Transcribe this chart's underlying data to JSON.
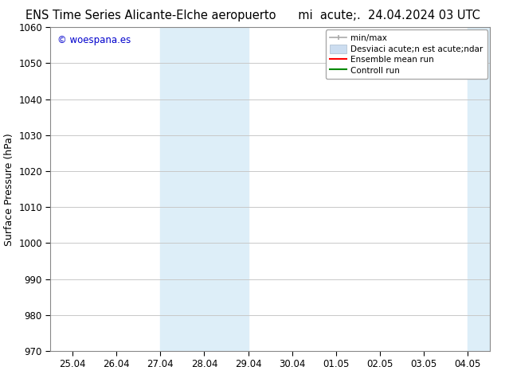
{
  "title_left": "ENS Time Series Alicante-Elche aeropuerto",
  "title_right": "mi  acute;.  24.04.2024 03 UTC",
  "ylabel": "Surface Pressure (hPa)",
  "ylim": [
    970,
    1060
  ],
  "yticks": [
    970,
    980,
    990,
    1000,
    1010,
    1020,
    1030,
    1040,
    1050,
    1060
  ],
  "xlabel_dates": [
    "25.04",
    "26.04",
    "27.04",
    "28.04",
    "29.04",
    "30.04",
    "01.05",
    "02.05",
    "03.05",
    "04.05"
  ],
  "watermark": "© woespana.es",
  "watermark_color": "#0000cc",
  "background_color": "#ffffff",
  "plot_bg_color": "#ffffff",
  "grid_color": "#c8c8c8",
  "shaded_color": "#ddeef8",
  "legend_minmax_color": "#aaaaaa",
  "legend_std_color": "#ccddf0",
  "legend_ens_color": "#ff0000",
  "legend_ctrl_color": "#008800",
  "title_fontsize": 10.5,
  "tick_fontsize": 8.5,
  "ylabel_fontsize": 9,
  "watermark_fontsize": 8.5
}
